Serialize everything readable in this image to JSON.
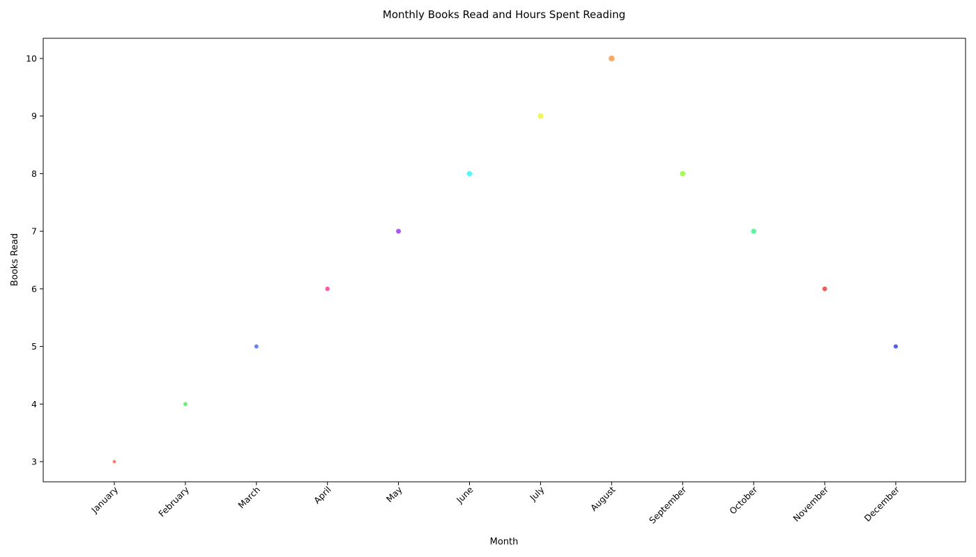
{
  "chart_data": {
    "type": "scatter",
    "title": "Monthly Books Read and Hours Spent Reading",
    "xlabel": "Month",
    "ylabel": "Books Read",
    "categories": [
      "January",
      "February",
      "March",
      "April",
      "May",
      "June",
      "July",
      "August",
      "September",
      "October",
      "November",
      "December"
    ],
    "values": [
      3,
      4,
      5,
      6,
      7,
      8,
      9,
      10,
      8,
      7,
      6,
      5
    ],
    "point_size_hours": [
      15,
      20,
      22,
      25,
      30,
      35,
      40,
      45,
      38,
      33,
      28,
      24
    ],
    "point_colors": [
      "#ff6b4a",
      "#4ded5e",
      "#4a6bff",
      "#ff3d9a",
      "#9b3dea",
      "#3df5f5",
      "#f0f542",
      "#f79a4a",
      "#9bf542",
      "#3df58c",
      "#f53d3d",
      "#3d45e0"
    ],
    "yticks": [
      3,
      4,
      5,
      6,
      7,
      8,
      9,
      10
    ],
    "ylim": [
      2.65,
      10.35
    ],
    "grid": false,
    "legend": "none"
  }
}
